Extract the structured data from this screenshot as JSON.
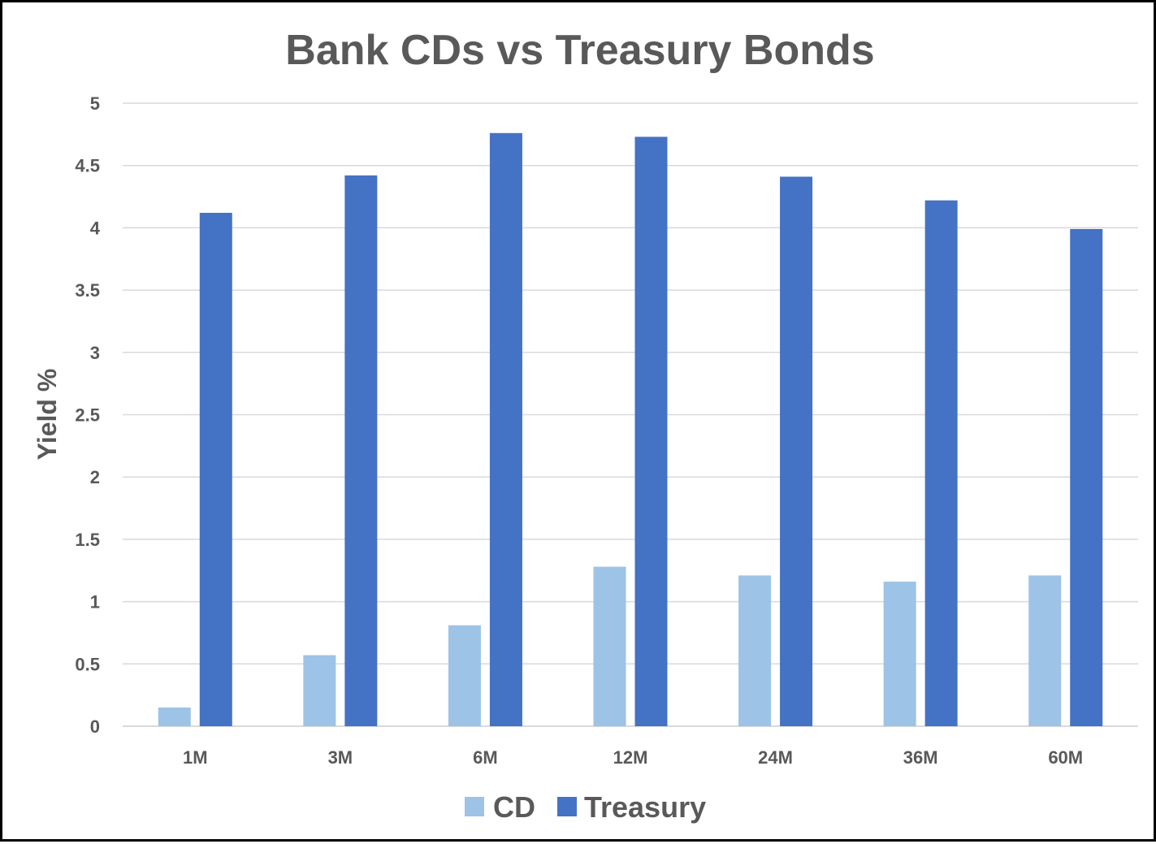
{
  "chart_data": {
    "type": "bar",
    "title": "Bank CDs vs Treasury Bonds",
    "xlabel": "",
    "ylabel": "Yield %",
    "categories": [
      "1M",
      "3M",
      "6M",
      "12M",
      "24M",
      "36M",
      "60M"
    ],
    "series": [
      {
        "name": "CD",
        "color": "#9dc3e6",
        "values": [
          0.15,
          0.57,
          0.81,
          1.28,
          1.21,
          1.16,
          1.21
        ]
      },
      {
        "name": "Treasury",
        "color": "#4472c4",
        "values": [
          4.12,
          4.42,
          4.76,
          4.73,
          4.41,
          4.22,
          3.99
        ]
      }
    ],
    "ylim": [
      0,
      5
    ],
    "yticks": [
      "0",
      "0.5",
      "1",
      "1.5",
      "2",
      "2.5",
      "3",
      "3.5",
      "4",
      "4.5",
      "5"
    ],
    "grid": true,
    "legend_position": "bottom"
  }
}
